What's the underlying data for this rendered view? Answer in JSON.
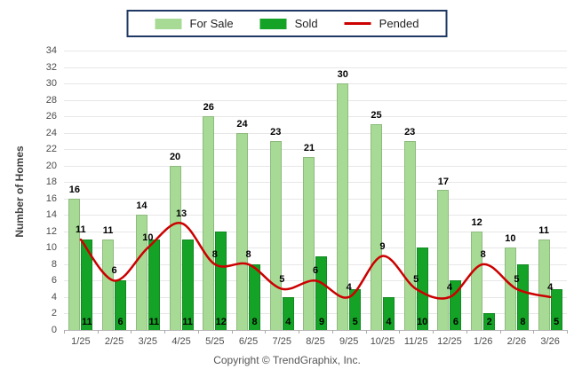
{
  "chart_data": {
    "type": "bar",
    "categories": [
      "1/25",
      "2/25",
      "3/25",
      "4/25",
      "5/25",
      "6/25",
      "7/25",
      "8/25",
      "9/25",
      "10/25",
      "11/25",
      "12/25",
      "1/26",
      "2/26",
      "3/26"
    ],
    "series": [
      {
        "name": "For Sale",
        "type": "bar",
        "color": "#A7DB95",
        "values": [
          16,
          11,
          14,
          20,
          26,
          24,
          23,
          21,
          30,
          25,
          23,
          17,
          12,
          10,
          11
        ]
      },
      {
        "name": "Sold",
        "type": "bar",
        "color": "#14A326",
        "values": [
          11,
          6,
          11,
          11,
          12,
          8,
          4,
          9,
          5,
          4,
          10,
          6,
          2,
          8,
          5
        ]
      },
      {
        "name": "Pended",
        "type": "line",
        "color": "#CC0000",
        "values": [
          11,
          6,
          10,
          13,
          8,
          8,
          5,
          6,
          4,
          9,
          5,
          4,
          8,
          5,
          4
        ]
      }
    ],
    "title": "",
    "xlabel": "",
    "ylabel": "Number of Homes",
    "ylim": [
      0,
      34
    ],
    "y_tick_step": 2,
    "grid": true,
    "legend_position": "top",
    "data_labels": true
  },
  "footer": {
    "copyright": "Copyright © TrendGraphix, Inc."
  },
  "colors": {
    "legend_border": "#1F3864",
    "grid": "#E7E7E7",
    "axis_text": "#4D4D4D"
  }
}
